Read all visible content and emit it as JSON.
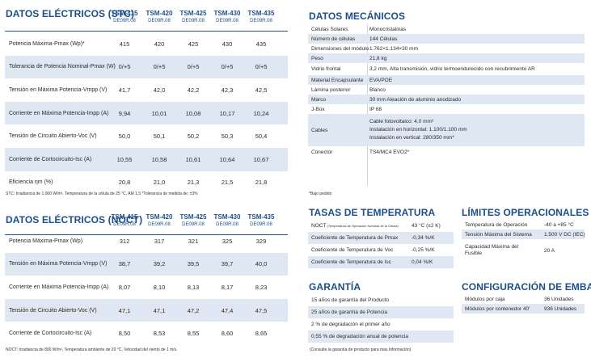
{
  "models": [
    {
      "name": "TSM-415",
      "sub": "DE09R.08"
    },
    {
      "name": "TSM-420",
      "sub": "DE09R.08"
    },
    {
      "name": "TSM-425",
      "sub": "DE09R.08"
    },
    {
      "name": "TSM-430",
      "sub": "DE09R.08"
    },
    {
      "name": "TSM-435",
      "sub": "DE09R.08"
    }
  ],
  "stc": {
    "title": "DATOS ELÉCTRICOS (STC)",
    "rows": [
      {
        "label": "Potencia Máxima-Pmax (Wp)*",
        "values": [
          "415",
          "420",
          "425",
          "430",
          "435"
        ]
      },
      {
        "label": "Tolerancia de Potencia Nominal-Pmax (W)",
        "values": [
          "0/+5",
          "0/+5",
          "0/+5",
          "0/+5",
          "0/+5"
        ]
      },
      {
        "label": "Tensión en Máxima Potencia-Vmpp (V)",
        "values": [
          "41,7",
          "42,0",
          "42,2",
          "42,3",
          "42,5"
        ]
      },
      {
        "label": "Corriente en Máxima Potencia-Impp (A)",
        "values": [
          "9,94",
          "10,01",
          "10,08",
          "10,17",
          "10,24"
        ]
      },
      {
        "label": "Tensión de Circuito Abierto-Voc (V)",
        "values": [
          "50,0",
          "50,1",
          "50,2",
          "50,3",
          "50,4"
        ]
      },
      {
        "label": "Corriente de Cortocircuito-Isc (A)",
        "values": [
          "10,55",
          "10,58",
          "10,61",
          "10,64",
          "10,67"
        ]
      },
      {
        "label": "Eficiencia ηm (%)",
        "values": [
          "20,8",
          "21,0",
          "21,3",
          "21,5",
          "21,8"
        ]
      }
    ],
    "note": "STC: Irradiancia de 1.000 W/m², Temperatura de la célula de 25 °C, AM 1,5   *Tolerancia de medida de: ±3%"
  },
  "noct": {
    "title": "DATOS ELÉCTRICOS (NOCT)",
    "rows": [
      {
        "label": "Potencia Máxima-Pmax (Wp)",
        "values": [
          "312",
          "317",
          "321",
          "325",
          "329"
        ]
      },
      {
        "label": "Tensión en Máxima Potencia-Vmpp (V)",
        "values": [
          "38,7",
          "39,2",
          "39,5",
          "39,7",
          "40,0"
        ]
      },
      {
        "label": "Corriente en Máxima Potencia-Impp (A)",
        "values": [
          "8,07",
          "8,10",
          "8,13",
          "8,17",
          "8,23"
        ]
      },
      {
        "label": "Tensión de Circuito Abierto-Voc (V)",
        "values": [
          "47,1",
          "47,1",
          "47,2",
          "47,4",
          "47,5"
        ]
      },
      {
        "label": "Corriente de Cortocircuito-Isc (A)",
        "values": [
          "8,50",
          "8,53",
          "8,55",
          "8,60",
          "8,65"
        ]
      }
    ],
    "note": "NOCT: Irradiancia de 800 W/m², Temperatura ambiente de 20 °C, Velocidad del viento de 1 m/s."
  },
  "mech": {
    "title": "DATOS MECÁNICOS",
    "rows": [
      {
        "key": "Células Solares",
        "value": "Monocristalinas"
      },
      {
        "key": "Número de células",
        "value": "144 Células"
      },
      {
        "key": "Dimensiones del módulo",
        "value": "1.762×1.134×30 mm"
      },
      {
        "key": "Peso",
        "value": "21,8 kg"
      },
      {
        "key": "Vidrio frontal",
        "value": "3,2 mm, Alta transmisión, vidrio termoendurecido con recubrimiento AR"
      },
      {
        "key": "Material Encapsulante",
        "value": "EVA/POE"
      },
      {
        "key": "Lámina posterior",
        "value": "Blanco"
      },
      {
        "key": "Marco",
        "value": "30 mm Aleación de aluminio anodizado"
      },
      {
        "key": "J-Box",
        "value": "IP 68"
      },
      {
        "key": "Cables",
        "lines": [
          "Cable fotovoltaico: 4,0 mm²",
          "Instalación en horizontal: 1.100/1.100 mm",
          "Instalación en vertical: 280/350 mm*"
        ]
      },
      {
        "key": "Conector",
        "value": "TS4/MC4 EVO2*"
      }
    ],
    "note": "*Bajo pedido"
  },
  "temp": {
    "title": "TASAS DE TEMPERATURA",
    "rows": [
      {
        "key": "NOCT",
        "small": "(Temperatura de Operación Nominal de la Célula)",
        "value": "43 °C (±2 K)"
      },
      {
        "key": "Coeficiente de Temperatura de Pmax",
        "value": "-0,34 %/K"
      },
      {
        "key": "Coeficiente de Temperatura de Voc",
        "value": "-0,25 %/K"
      },
      {
        "key": "Coeficiente de Temperatura de Isc",
        "value": "0,04 %/K"
      }
    ]
  },
  "limits": {
    "title": "LÍMITES OPERACIONALES",
    "rows": [
      {
        "key": "Temperatura de Operación",
        "value": "-40 a +85 °C"
      },
      {
        "key": "Tensión Máxima del Sistema",
        "value": "1.500 V DC (IEC)"
      },
      {
        "key": "Capacidad Máxima del Fusible",
        "value": "20 A"
      }
    ]
  },
  "warranty": {
    "title": "GARANTÍA",
    "rows": [
      "15 años de garantía del Producto",
      "25 años de garantía de Potencia",
      "2 % de degradación el primer año",
      "0,55 % de degradación anual de potencia"
    ],
    "note": "(Consulte la garantía de producto para más información)"
  },
  "packaging": {
    "title": "CONFIGURACIÓN DE EMBALAJE",
    "rows": [
      {
        "key": "Módulos por caja",
        "value": "36 Unidades"
      },
      {
        "key": "Módulos por contenedor 40'",
        "value": "936 Unidades"
      }
    ]
  }
}
